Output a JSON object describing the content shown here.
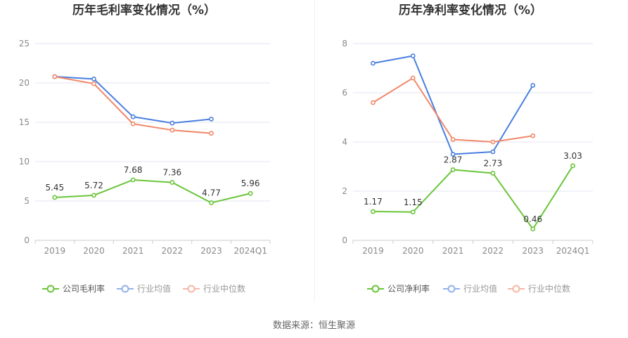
{
  "source": "数据来源：恒生聚源",
  "colors": {
    "company": "#6ac53a",
    "industry_avg": "#4a7fe0",
    "industry_median": "#f0896a"
  },
  "chart_data": [
    {
      "type": "line",
      "title": "历年毛利率变化情况（%）",
      "categories": [
        "2019",
        "2020",
        "2021",
        "2022",
        "2023",
        "2024Q1"
      ],
      "ylim": [
        0,
        25
      ],
      "yticks": [
        0,
        5,
        10,
        15,
        20,
        25
      ],
      "grid": true,
      "legend_position": "bottom",
      "series": [
        {
          "name": "公司毛利率",
          "values": [
            5.45,
            5.72,
            7.68,
            7.36,
            4.77,
            5.96
          ],
          "labels": [
            "5.45",
            "5.72",
            "7.68",
            "7.36",
            "4.77",
            "5.96"
          ]
        },
        {
          "name": "行业均值",
          "values": [
            20.8,
            20.5,
            15.7,
            14.9,
            15.4,
            null
          ]
        },
        {
          "name": "行业中位数",
          "values": [
            20.8,
            19.9,
            14.8,
            14.0,
            13.6,
            null
          ]
        }
      ]
    },
    {
      "type": "line",
      "title": "历年净利率变化情况（%）",
      "categories": [
        "2019",
        "2020",
        "2021",
        "2022",
        "2023",
        "2024Q1"
      ],
      "ylim": [
        0,
        8
      ],
      "yticks": [
        0,
        2,
        4,
        6,
        8
      ],
      "grid": true,
      "legend_position": "bottom",
      "series": [
        {
          "name": "公司净利率",
          "values": [
            1.17,
            1.15,
            2.87,
            2.73,
            0.46,
            3.03
          ],
          "labels": [
            "1.17",
            "1.15",
            "2.87",
            "2.73",
            "0.46",
            "3.03"
          ]
        },
        {
          "name": "行业均值",
          "values": [
            7.2,
            7.5,
            3.5,
            3.6,
            6.3,
            null
          ]
        },
        {
          "name": "行业中位数",
          "values": [
            5.6,
            6.6,
            4.1,
            4.0,
            4.25,
            null
          ]
        }
      ]
    }
  ]
}
